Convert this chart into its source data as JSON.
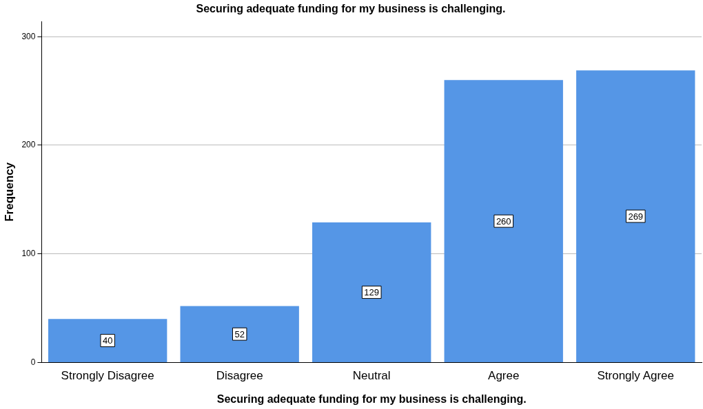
{
  "chart_data": {
    "type": "bar",
    "title": "Securing adequate funding for my business is challenging.",
    "xlabel": "Securing adequate funding for my business is challenging.",
    "ylabel": "Frequency",
    "categories": [
      "Strongly Disagree",
      "Disagree",
      "Neutral",
      "Agree",
      "Strongly Agree"
    ],
    "values": [
      40,
      52,
      129,
      260,
      269
    ],
    "color": "#5596e6",
    "ylim": [
      0,
      314
    ],
    "yticks": [
      0,
      100,
      200,
      300
    ],
    "grid": "y",
    "data_labels": true
  }
}
